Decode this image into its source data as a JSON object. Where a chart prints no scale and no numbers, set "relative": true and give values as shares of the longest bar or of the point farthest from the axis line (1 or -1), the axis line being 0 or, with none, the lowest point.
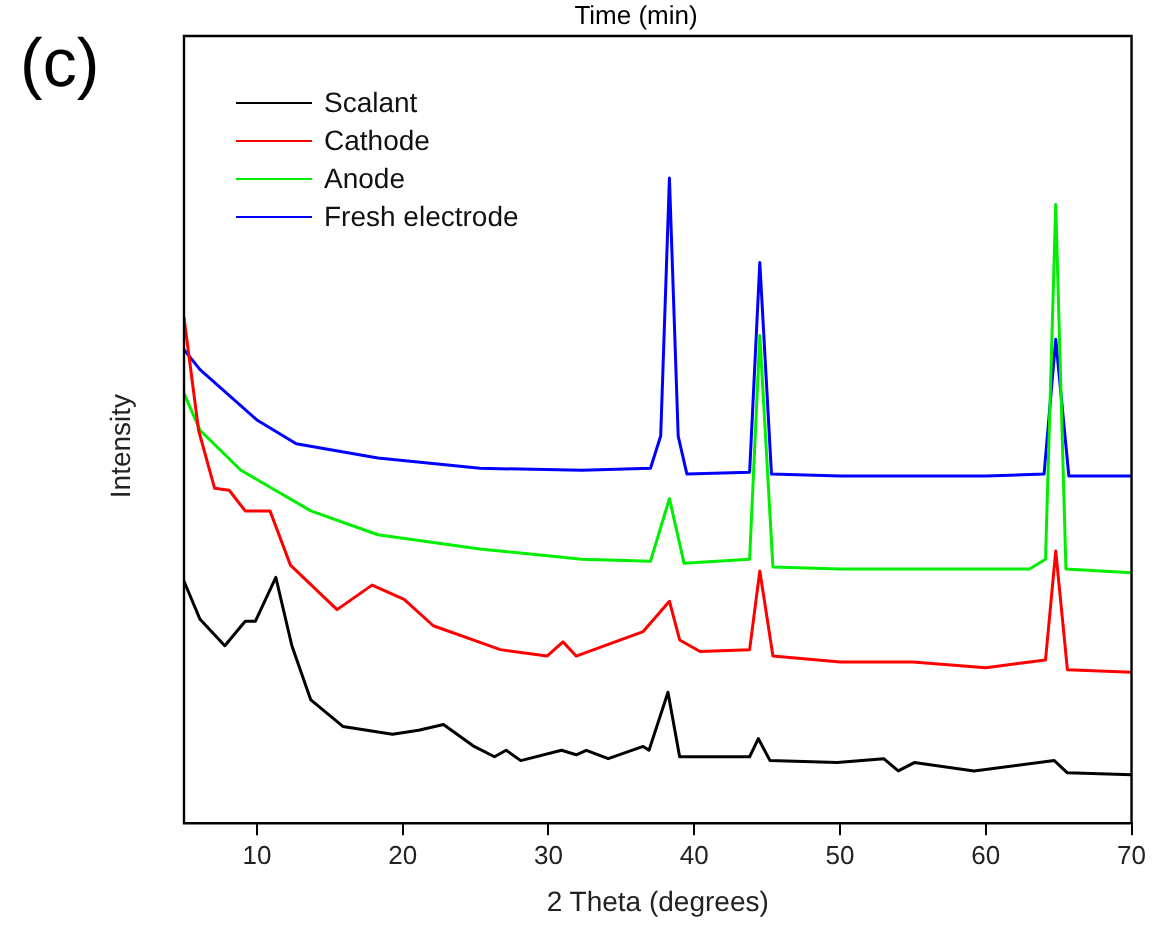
{
  "chart_data": {
    "type": "line",
    "xlabel": "2 Theta (degrees)",
    "ylabel": "Intensity",
    "relative": true,
    "annotations": [
      "(c)",
      "Time (min)"
    ],
    "xlim": [
      5,
      70
    ],
    "xticks": [
      10,
      20,
      30,
      40,
      50,
      60,
      70
    ],
    "grid": false,
    "legend": "top left",
    "marker": "none",
    "line_style": "solid",
    "series": [
      {
        "name": "Scalant",
        "color": "#000000",
        "x": [
          5,
          6.1,
          7.8,
          9.2,
          9.9,
          11.3,
          12.4,
          13.7,
          15.9,
          19.3,
          21.1,
          22.8,
          24.9,
          26.3,
          27.1,
          28.1,
          30.9,
          31.9,
          32.6,
          34.1,
          36.5,
          36.9,
          38.2,
          39,
          43.8,
          44.4,
          45.2,
          49.8,
          53,
          54,
          55.1,
          59.2,
          64.7,
          65.6,
          70
        ],
        "values": [
          0.375,
          0.316,
          0.275,
          0.313,
          0.313,
          0.381,
          0.275,
          0.191,
          0.15,
          0.138,
          0.144,
          0.153,
          0.119,
          0.103,
          0.113,
          0.097,
          0.113,
          0.106,
          0.113,
          0.1,
          0.119,
          0.113,
          0.203,
          0.103,
          0.103,
          0.131,
          0.097,
          0.094,
          0.1,
          0.081,
          0.094,
          0.081,
          0.097,
          0.078,
          0.075
        ]
      },
      {
        "name": "Cathode",
        "color": "#ff0000",
        "x": [
          5,
          6,
          7.1,
          8.1,
          9.2,
          10.9,
          12.3,
          15.5,
          17.9,
          20.1,
          22.1,
          26.7,
          29.9,
          31,
          31.9,
          36.5,
          38.3,
          39,
          40.4,
          43.8,
          44.5,
          45.4,
          50,
          55,
          60,
          64.1,
          64.8,
          65.6,
          70
        ],
        "values": [
          0.784,
          0.609,
          0.519,
          0.516,
          0.484,
          0.484,
          0.4,
          0.331,
          0.369,
          0.347,
          0.306,
          0.269,
          0.259,
          0.281,
          0.259,
          0.297,
          0.344,
          0.284,
          0.266,
          0.269,
          0.391,
          0.259,
          0.25,
          0.25,
          0.241,
          0.253,
          0.422,
          0.238,
          0.234
        ]
      },
      {
        "name": "Anode",
        "color": "#00ee00",
        "x": [
          5,
          6.1,
          8.9,
          13.7,
          18.3,
          25.3,
          32.3,
          37,
          38.3,
          39.3,
          43.8,
          44.5,
          45.4,
          50,
          63,
          64.1,
          64.8,
          65.5,
          70
        ],
        "values": [
          0.666,
          0.609,
          0.547,
          0.484,
          0.447,
          0.425,
          0.409,
          0.406,
          0.503,
          0.403,
          0.409,
          0.756,
          0.397,
          0.394,
          0.394,
          0.409,
          0.959,
          0.394,
          0.388
        ]
      },
      {
        "name": "Fresh electrode",
        "color": "#0000ff",
        "x": [
          5,
          6.1,
          10,
          12.7,
          18.3,
          25.3,
          32.3,
          37,
          37.7,
          38.3,
          38.9,
          39.5,
          43.8,
          44.5,
          45.3,
          50,
          60,
          64,
          64.8,
          65.7,
          70
        ],
        "values": [
          0.734,
          0.703,
          0.625,
          0.588,
          0.566,
          0.55,
          0.547,
          0.55,
          0.6,
          1.0,
          0.6,
          0.541,
          0.544,
          0.869,
          0.541,
          0.538,
          0.538,
          0.541,
          0.75,
          0.538,
          0.538
        ]
      }
    ]
  }
}
